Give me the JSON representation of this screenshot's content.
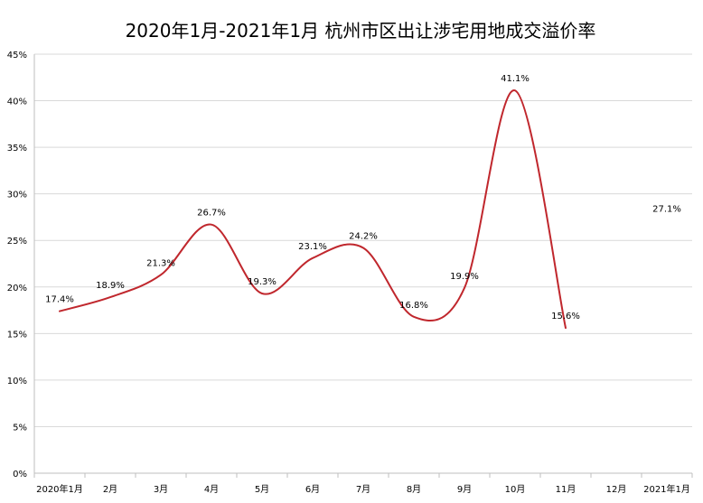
{
  "chart_data": {
    "type": "line",
    "title": "2020年1月-2021年1月 杭州市区出让涉宅用地成交溢价率",
    "categories": [
      "2020年1月",
      "2月",
      "3月",
      "4月",
      "5月",
      "6月",
      "7月",
      "8月",
      "9月",
      "10月",
      "11月",
      "12月",
      "2021年1月"
    ],
    "series": [
      {
        "name": "溢价率",
        "values": [
          17.4,
          18.9,
          21.3,
          26.7,
          19.3,
          23.1,
          24.2,
          16.8,
          19.9,
          41.1,
          15.6,
          null,
          27.1
        ],
        "labels": [
          "17.4%",
          "18.9%",
          "21.3%",
          "26.7%",
          "19.3%",
          "23.1%",
          "24.2%",
          "16.8%",
          "19.9%",
          "41.1%",
          "15.6%",
          "",
          "27.1%"
        ],
        "color": "#C0272D"
      }
    ],
    "y_ticks": [
      "0%",
      "5%",
      "10%",
      "15%",
      "20%",
      "25%",
      "30%",
      "35%",
      "40%",
      "45%"
    ],
    "ylim": [
      0,
      45
    ],
    "y_step": 5,
    "xlabel": "",
    "ylabel": "",
    "grid": true,
    "legend": "none"
  }
}
